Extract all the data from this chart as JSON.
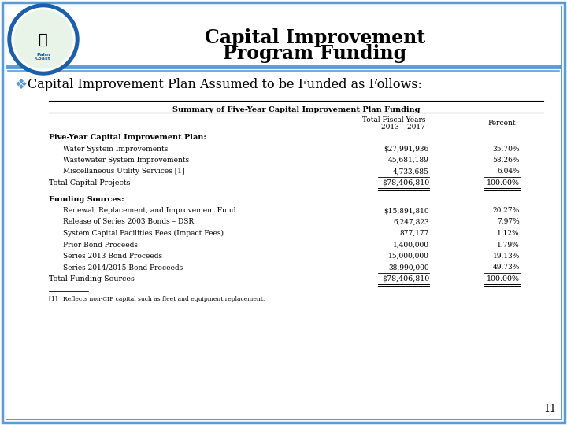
{
  "title_line1": "Capital Improvement",
  "title_line2": "Program Funding",
  "subtitle": "Capital Improvement Plan Assumed to be Funded as Follows:",
  "table_title": "Summary of Five-Year Capital Improvement Plan Funding",
  "col_header1": "Total Fiscal Years",
  "col_header1b": "2013 – 2017",
  "col_header2": "Percent",
  "sections": [
    {
      "header": "Five-Year Capital Improvement Plan:",
      "rows": [
        {
          "label": "    Water System Improvements",
          "value": "$27,991,936",
          "pct": "35.70%",
          "underline": false
        },
        {
          "label": "    Wastewater System Improvements",
          "value": "45,681,189",
          "pct": "58.26%",
          "underline": false
        },
        {
          "label": "    Miscellaneous Utility Services [1]",
          "value": "4,733,685",
          "pct": "6.04%",
          "underline": true
        }
      ],
      "total_label": "Total Capital Projects",
      "total_value": "$78,406,810",
      "total_pct": "100.00%"
    },
    {
      "header": "Funding Sources:",
      "rows": [
        {
          "label": "    Renewal, Replacement, and Improvement Fund",
          "value": "$15,891,810",
          "pct": "20.27%",
          "underline": false
        },
        {
          "label": "    Release of Series 2003 Bonds – DSR",
          "value": "6,247,823",
          "pct": "7.97%",
          "underline": false
        },
        {
          "label": "    System Capital Facilities Fees (Impact Fees)",
          "value": "877,177",
          "pct": "1.12%",
          "underline": false
        },
        {
          "label": "    Prior Bond Proceeds",
          "value": "1,400,000",
          "pct": "1.79%",
          "underline": false
        },
        {
          "label": "    Series 2013 Bond Proceeds",
          "value": "15,000,000",
          "pct": "19.13%",
          "underline": false
        },
        {
          "label": "    Series 2014/2015 Bond Proceeds",
          "value": "38,990,000",
          "pct": "49.73%",
          "underline": true
        }
      ],
      "total_label": "Total Funding Sources",
      "total_value": "$78,406,810",
      "total_pct": "100.00%"
    }
  ],
  "footnote": "[1]   Reflects non-CIP capital such as fleet and equipment replacement.",
  "page_number": "11",
  "border_color": "#5b9bd5",
  "bg_color": "#ffffff",
  "header_line_color": "#5b9bd5",
  "text_color": "#000000",
  "diamond_color": "#5b9bd5",
  "logo_outer": "#1a5fa8",
  "logo_inner": "#e8f4e8"
}
